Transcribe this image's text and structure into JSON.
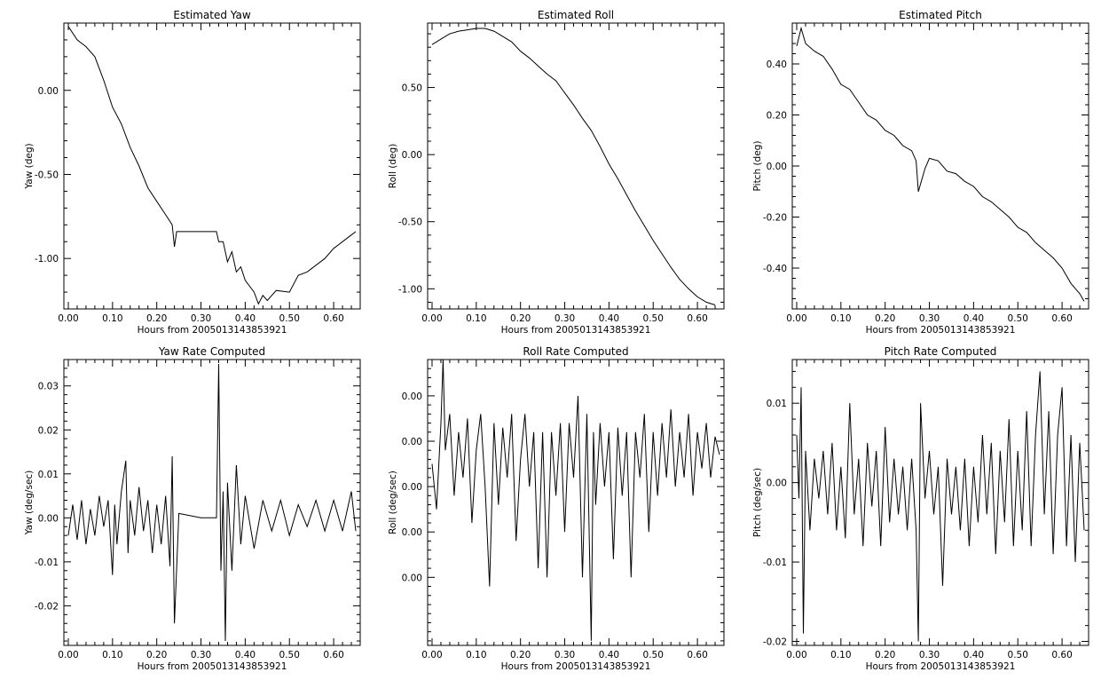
{
  "chart_data": [
    {
      "id": "yaw",
      "type": "line",
      "title": "Estimated Yaw",
      "xlabel": "Hours from 2005013143853921",
      "ylabel": "Yaw (deg)",
      "xlim": [
        -0.01,
        0.66
      ],
      "ylim": [
        -1.3,
        0.4
      ],
      "xticks": [
        0.0,
        0.1,
        0.2,
        0.3,
        0.4,
        0.5,
        0.6
      ],
      "xtick_labels": [
        "0.00",
        "0.10",
        "0.20",
        "0.30",
        "0.40",
        "0.50",
        "0.60"
      ],
      "yticks": [
        0.0,
        -0.5,
        -1.0
      ],
      "ytick_labels": [
        "0.00",
        "-0.50",
        "-1.00"
      ],
      "series": [
        {
          "x": [
            0.0,
            0.02,
            0.04,
            0.06,
            0.08,
            0.1,
            0.12,
            0.14,
            0.16,
            0.18,
            0.2,
            0.22,
            0.235,
            0.24,
            0.245,
            0.26,
            0.3,
            0.335,
            0.34,
            0.35,
            0.36,
            0.37,
            0.38,
            0.39,
            0.4,
            0.42,
            0.43,
            0.44,
            0.45,
            0.47,
            0.5,
            0.52,
            0.54,
            0.56,
            0.58,
            0.6,
            0.62,
            0.64,
            0.65
          ],
          "y": [
            0.38,
            0.3,
            0.26,
            0.2,
            0.06,
            -0.1,
            -0.2,
            -0.34,
            -0.45,
            -0.58,
            -0.66,
            -0.74,
            -0.8,
            -0.93,
            -0.84,
            -0.84,
            -0.84,
            -0.84,
            -0.9,
            -0.9,
            -1.02,
            -0.96,
            -1.08,
            -1.05,
            -1.13,
            -1.2,
            -1.27,
            -1.22,
            -1.25,
            -1.19,
            -1.2,
            -1.1,
            -1.08,
            -1.04,
            -1.0,
            -0.94,
            -0.9,
            -0.86,
            -0.84
          ]
        }
      ]
    },
    {
      "id": "roll",
      "type": "line",
      "title": "Estimated Roll",
      "xlabel": "Hours from 2005013143853921",
      "ylabel": "Roll (deg)",
      "xlim": [
        -0.01,
        0.66
      ],
      "ylim": [
        -1.15,
        0.98
      ],
      "xticks": [
        0.0,
        0.1,
        0.2,
        0.3,
        0.4,
        0.5,
        0.6
      ],
      "xtick_labels": [
        "0.00",
        "0.10",
        "0.20",
        "0.30",
        "0.40",
        "0.50",
        "0.60"
      ],
      "yticks": [
        0.5,
        0.0,
        -0.5,
        -1.0
      ],
      "ytick_labels": [
        "0.50",
        "0.00",
        "-0.50",
        "-1.00"
      ],
      "series": [
        {
          "x": [
            0.0,
            0.02,
            0.04,
            0.06,
            0.08,
            0.1,
            0.12,
            0.14,
            0.16,
            0.18,
            0.2,
            0.22,
            0.24,
            0.26,
            0.28,
            0.3,
            0.32,
            0.34,
            0.36,
            0.38,
            0.4,
            0.42,
            0.44,
            0.46,
            0.48,
            0.5,
            0.52,
            0.54,
            0.56,
            0.58,
            0.6,
            0.62,
            0.64
          ],
          "y": [
            0.82,
            0.86,
            0.9,
            0.92,
            0.93,
            0.94,
            0.94,
            0.92,
            0.88,
            0.84,
            0.77,
            0.72,
            0.66,
            0.6,
            0.55,
            0.46,
            0.37,
            0.27,
            0.18,
            0.06,
            -0.07,
            -0.18,
            -0.3,
            -0.42,
            -0.53,
            -0.64,
            -0.74,
            -0.84,
            -0.93,
            -1.0,
            -1.06,
            -1.1,
            -1.12
          ]
        }
      ]
    },
    {
      "id": "pitch",
      "type": "line",
      "title": "Estimated Pitch",
      "xlabel": "Hours from 2005013143853921",
      "ylabel": "Pitch (deg)",
      "xlim": [
        -0.01,
        0.66
      ],
      "ylim": [
        -0.56,
        0.56
      ],
      "xticks": [
        0.0,
        0.1,
        0.2,
        0.3,
        0.4,
        0.5,
        0.6
      ],
      "xtick_labels": [
        "0.00",
        "0.10",
        "0.20",
        "0.30",
        "0.40",
        "0.50",
        "0.60"
      ],
      "yticks": [
        0.4,
        0.2,
        0.0,
        -0.2,
        -0.4
      ],
      "ytick_labels": [
        "0.40",
        "0.20",
        "0.00",
        "-0.20",
        "-0.40"
      ],
      "series": [
        {
          "x": [
            0.0,
            0.01,
            0.02,
            0.04,
            0.06,
            0.08,
            0.1,
            0.12,
            0.14,
            0.16,
            0.18,
            0.2,
            0.22,
            0.24,
            0.26,
            0.27,
            0.275,
            0.29,
            0.3,
            0.32,
            0.34,
            0.36,
            0.38,
            0.4,
            0.42,
            0.44,
            0.46,
            0.48,
            0.5,
            0.52,
            0.54,
            0.56,
            0.58,
            0.6,
            0.62,
            0.64,
            0.65
          ],
          "y": [
            0.47,
            0.54,
            0.48,
            0.45,
            0.43,
            0.38,
            0.32,
            0.3,
            0.25,
            0.2,
            0.18,
            0.14,
            0.12,
            0.08,
            0.06,
            0.02,
            -0.1,
            -0.01,
            0.03,
            0.02,
            -0.02,
            -0.03,
            -0.06,
            -0.08,
            -0.12,
            -0.14,
            -0.17,
            -0.2,
            -0.24,
            -0.26,
            -0.3,
            -0.33,
            -0.36,
            -0.4,
            -0.46,
            -0.5,
            -0.53
          ]
        }
      ]
    },
    {
      "id": "yaw_rate",
      "type": "line",
      "title": "Yaw Rate Computed",
      "xlabel": "Hours from 2005013143853921",
      "ylabel": "Yaw (deg/sec)",
      "xlim": [
        -0.01,
        0.66
      ],
      "ylim": [
        -0.029,
        0.036
      ],
      "xticks": [
        0.0,
        0.1,
        0.2,
        0.3,
        0.4,
        0.5,
        0.6
      ],
      "xtick_labels": [
        "0.00",
        "0.10",
        "0.20",
        "0.30",
        "0.40",
        "0.50",
        "0.60"
      ],
      "yticks": [
        0.03,
        0.02,
        0.01,
        0.0,
        -0.01,
        -0.02
      ],
      "ytick_labels": [
        "0.03",
        "0.02",
        "0.01",
        "0.00",
        "-0.01",
        "-0.02"
      ],
      "series": [
        {
          "x": [
            0.0,
            0.01,
            0.02,
            0.03,
            0.04,
            0.05,
            0.06,
            0.07,
            0.08,
            0.09,
            0.1,
            0.105,
            0.11,
            0.12,
            0.13,
            0.135,
            0.14,
            0.15,
            0.16,
            0.17,
            0.18,
            0.19,
            0.2,
            0.21,
            0.22,
            0.23,
            0.235,
            0.24,
            0.25,
            0.3,
            0.33,
            0.335,
            0.34,
            0.345,
            0.35,
            0.355,
            0.36,
            0.37,
            0.38,
            0.39,
            0.4,
            0.42,
            0.44,
            0.46,
            0.48,
            0.5,
            0.52,
            0.54,
            0.56,
            0.58,
            0.6,
            0.62,
            0.64,
            0.65
          ],
          "y": [
            -0.004,
            0.003,
            -0.005,
            0.004,
            -0.006,
            0.002,
            -0.004,
            0.005,
            -0.002,
            0.004,
            -0.013,
            0.003,
            -0.006,
            0.006,
            0.013,
            -0.008,
            0.004,
            -0.004,
            0.007,
            -0.003,
            0.004,
            -0.008,
            0.003,
            -0.006,
            0.005,
            -0.011,
            0.014,
            -0.024,
            0.001,
            0.0,
            0.0,
            0.0,
            0.035,
            -0.012,
            0.006,
            -0.028,
            0.008,
            -0.012,
            0.012,
            -0.006,
            0.005,
            -0.007,
            0.004,
            -0.003,
            0.004,
            -0.004,
            0.003,
            -0.002,
            0.004,
            -0.003,
            0.004,
            -0.003,
            0.006,
            -0.003
          ]
        }
      ]
    },
    {
      "id": "roll_rate",
      "type": "line",
      "title": "Roll Rate Computed",
      "xlabel": "Hours from 2005013143853921",
      "ylabel": "Roll (deg/sec)",
      "xlim": [
        -0.01,
        0.66
      ],
      "ylim": [
        -0.0045,
        0.0018
      ],
      "xticks": [
        0.0,
        0.1,
        0.2,
        0.3,
        0.4,
        0.5,
        0.6
      ],
      "xtick_labels": [
        "0.00",
        "0.10",
        "0.20",
        "0.30",
        "0.40",
        "0.50",
        "0.60"
      ],
      "yticks": [
        0.001,
        0.0,
        -0.001,
        -0.002,
        -0.003
      ],
      "ytick_labels": [
        "0.00",
        "0.00",
        "0.00",
        "0.00",
        "0.00"
      ],
      "series": [
        {
          "x": [
            0.0,
            0.01,
            0.02,
            0.025,
            0.03,
            0.04,
            0.05,
            0.06,
            0.07,
            0.08,
            0.09,
            0.1,
            0.11,
            0.12,
            0.13,
            0.14,
            0.15,
            0.16,
            0.17,
            0.18,
            0.19,
            0.2,
            0.21,
            0.22,
            0.23,
            0.24,
            0.25,
            0.26,
            0.27,
            0.28,
            0.29,
            0.3,
            0.31,
            0.32,
            0.33,
            0.34,
            0.35,
            0.36,
            0.365,
            0.37,
            0.38,
            0.39,
            0.4,
            0.41,
            0.42,
            0.43,
            0.44,
            0.45,
            0.46,
            0.47,
            0.48,
            0.49,
            0.5,
            0.51,
            0.52,
            0.53,
            0.54,
            0.55,
            0.56,
            0.57,
            0.58,
            0.59,
            0.6,
            0.61,
            0.62,
            0.63,
            0.64,
            0.65
          ],
          "y": [
            -0.0005,
            -0.0015,
            0.0004,
            0.0018,
            -0.0002,
            0.0006,
            -0.0012,
            0.0002,
            -0.0008,
            0.0005,
            -0.0018,
            -0.0002,
            0.0006,
            -0.001,
            -0.0032,
            0.0004,
            -0.0014,
            0.0003,
            -0.0008,
            0.0006,
            -0.0022,
            -0.0004,
            0.0006,
            -0.001,
            0.0002,
            -0.0028,
            0.0002,
            -0.003,
            0.0002,
            -0.0012,
            0.0004,
            -0.002,
            0.0004,
            -0.0008,
            0.001,
            -0.003,
            0.0006,
            -0.0044,
            0.0002,
            -0.0014,
            0.0004,
            -0.001,
            0.0002,
            -0.0026,
            0.0003,
            -0.0012,
            0.0002,
            -0.003,
            0.0002,
            -0.0008,
            0.0006,
            -0.002,
            0.0002,
            -0.0012,
            0.0004,
            -0.0008,
            0.0007,
            -0.001,
            0.0002,
            -0.0008,
            0.0006,
            -0.0012,
            0.0002,
            -0.0006,
            0.0004,
            -0.0008,
            0.0001,
            -0.0003
          ]
        }
      ]
    },
    {
      "id": "pitch_rate",
      "type": "line",
      "title": "Pitch Rate Computed",
      "xlabel": "Hours from 2005013143853921",
      "ylabel": "Pitch (deg/sec)",
      "xlim": [
        -0.01,
        0.66
      ],
      "ylim": [
        -0.0205,
        0.0155
      ],
      "xticks": [
        0.0,
        0.1,
        0.2,
        0.3,
        0.4,
        0.5,
        0.6
      ],
      "xtick_labels": [
        "0.00",
        "0.10",
        "0.20",
        "0.30",
        "0.40",
        "0.50",
        "0.60"
      ],
      "yticks": [
        0.01,
        0.0,
        -0.01,
        -0.02
      ],
      "ytick_labels": [
        "0.01",
        "0.00",
        "-0.01",
        "-0.02"
      ],
      "series": [
        {
          "x": [
            0.0,
            0.005,
            0.01,
            0.015,
            0.02,
            0.03,
            0.04,
            0.05,
            0.06,
            0.07,
            0.08,
            0.09,
            0.1,
            0.11,
            0.12,
            0.13,
            0.14,
            0.15,
            0.16,
            0.17,
            0.18,
            0.19,
            0.2,
            0.21,
            0.22,
            0.23,
            0.24,
            0.25,
            0.26,
            0.27,
            0.275,
            0.28,
            0.29,
            0.3,
            0.31,
            0.32,
            0.33,
            0.34,
            0.35,
            0.36,
            0.37,
            0.38,
            0.39,
            0.4,
            0.41,
            0.42,
            0.43,
            0.44,
            0.45,
            0.46,
            0.47,
            0.48,
            0.49,
            0.5,
            0.51,
            0.52,
            0.53,
            0.54,
            0.55,
            0.56,
            0.57,
            0.58,
            0.59,
            0.6,
            0.61,
            0.62,
            0.63,
            0.64,
            0.65
          ],
          "y": [
            0.006,
            -0.002,
            0.012,
            -0.019,
            0.004,
            -0.006,
            0.003,
            -0.002,
            0.004,
            -0.004,
            0.005,
            -0.006,
            0.002,
            -0.007,
            0.01,
            -0.004,
            0.003,
            -0.008,
            0.005,
            -0.003,
            0.004,
            -0.008,
            0.007,
            -0.005,
            0.003,
            -0.004,
            0.002,
            -0.006,
            0.003,
            -0.006,
            -0.02,
            0.01,
            -0.002,
            0.004,
            -0.004,
            0.002,
            -0.013,
            0.003,
            -0.004,
            0.002,
            -0.006,
            0.003,
            -0.008,
            0.002,
            -0.005,
            0.006,
            -0.004,
            0.005,
            -0.009,
            0.004,
            -0.005,
            0.008,
            -0.008,
            0.004,
            -0.006,
            0.009,
            -0.008,
            0.006,
            0.014,
            -0.004,
            0.009,
            -0.009,
            0.006,
            0.012,
            -0.008,
            0.006,
            -0.01,
            0.005,
            -0.006
          ]
        }
      ]
    }
  ]
}
